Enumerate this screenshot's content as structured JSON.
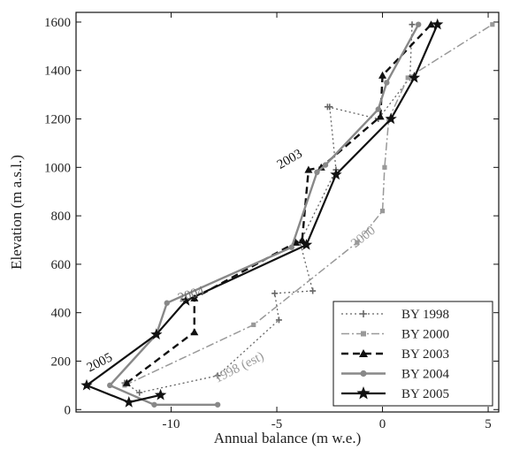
{
  "chart_data": {
    "type": "line",
    "xlabel": "Annual balance (m w.e.)",
    "ylabel": "Elevation (m a.s.l.)",
    "xlim": [
      -14.5,
      5.5
    ],
    "ylim": [
      -10,
      1640
    ],
    "xticks": [
      -10,
      -5,
      0,
      5
    ],
    "yticks": [
      0,
      200,
      400,
      600,
      800,
      1000,
      1200,
      1400,
      1600
    ],
    "legend_position": "bottom-right",
    "series": [
      {
        "name": "BY 1998",
        "color": "#666666",
        "dash": "2,3",
        "marker": "plus",
        "width": 1.3,
        "x": [
          -12.2,
          -11.5,
          -7.8,
          -4.9,
          -5.1,
          -3.3,
          -3.9,
          -2.2,
          -2.5,
          -2.6,
          -0.2,
          1.3,
          1.4
        ],
        "y": [
          110,
          70,
          140,
          370,
          480,
          490,
          690,
          990,
          1250,
          1250,
          1200,
          1370,
          1590
        ]
      },
      {
        "name": "BY 2000",
        "color": "#999999",
        "dash": "9,3,2,3",
        "marker": "square",
        "width": 1.5,
        "x": [
          -12.2,
          -6.1,
          -1.2,
          0.0,
          0.1,
          0.3,
          1.2,
          5.2
        ],
        "y": [
          100,
          350,
          690,
          820,
          1000,
          1200,
          1370,
          1590
        ]
      },
      {
        "name": "BY 2003",
        "color": "#111111",
        "dash": "8,5",
        "marker": "triangle",
        "width": 2.4,
        "x": [
          -12.1,
          -8.9,
          -8.9,
          -4.1,
          -3.8,
          -3.5,
          -2.9,
          -0.1,
          0.0,
          2.3
        ],
        "y": [
          110,
          320,
          460,
          690,
          700,
          990,
          1000,
          1210,
          1380,
          1590
        ]
      },
      {
        "name": "BY 2004",
        "color": "#888888",
        "dash": "",
        "marker": "circle",
        "width": 2.4,
        "x": [
          -7.8,
          -10.8,
          -12.9,
          -10.7,
          -10.2,
          -4.3,
          -3.1,
          -2.7,
          -0.2,
          0.2,
          1.7
        ],
        "y": [
          20,
          20,
          100,
          310,
          440,
          670,
          980,
          1010,
          1240,
          1350,
          1590
        ]
      },
      {
        "name": "BY 2005",
        "color": "#111111",
        "dash": "",
        "marker": "star",
        "width": 2.2,
        "x": [
          -10.5,
          -12.0,
          -14.0,
          -10.7,
          -9.3,
          -3.6,
          -2.2,
          0.4,
          1.5,
          2.6
        ],
        "y": [
          60,
          30,
          100,
          310,
          450,
          680,
          970,
          1200,
          1370,
          1590
        ]
      }
    ],
    "annotations": [
      {
        "text": "2003",
        "x": -4.3,
        "y": 1020,
        "rotate": -30,
        "color": "#111111"
      },
      {
        "text": "2000",
        "x": -0.8,
        "y": 700,
        "rotate": -38,
        "color": "#999999"
      },
      {
        "text": "2004",
        "x": -9.0,
        "y": 460,
        "rotate": -18,
        "color": "#777777"
      },
      {
        "text": "2005",
        "x": -13.3,
        "y": 180,
        "rotate": -27,
        "color": "#111111"
      },
      {
        "text": "1998 (est)",
        "x": -6.7,
        "y": 160,
        "rotate": -27,
        "color": "#999999"
      }
    ]
  }
}
